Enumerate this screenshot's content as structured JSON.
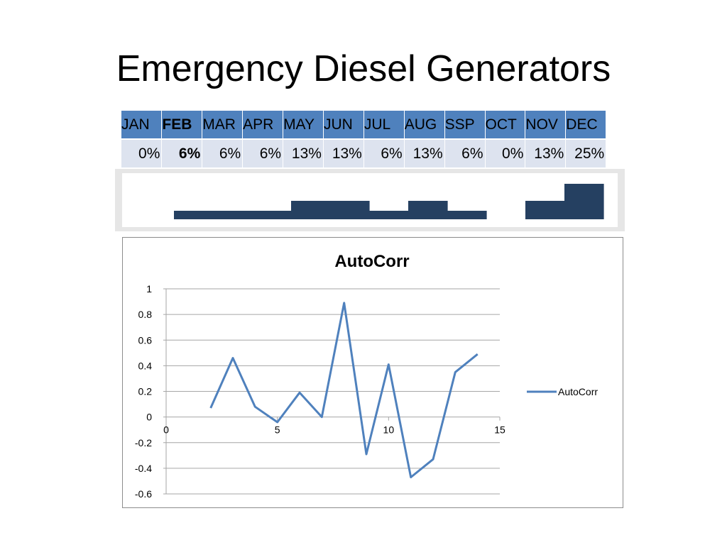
{
  "slide": {
    "title": "Emergency Diesel Generators"
  },
  "months_table": {
    "headers": [
      "JAN",
      "FEB",
      "MAR",
      "APR",
      "MAY",
      "JUN",
      "JUL",
      "AUG",
      "SSP",
      "OCT",
      "NOV",
      "DEC"
    ],
    "values": [
      "0%",
      "6%",
      "6%",
      "6%",
      "13%",
      "13%",
      "6%",
      "13%",
      "6%",
      "0%",
      "13%",
      "25%"
    ],
    "highlight_index": 1
  },
  "colors": {
    "header_fill": "#4f81bd",
    "value_fill": "#dde3ef",
    "bar_fill": "#254061",
    "line": "#4f81bd",
    "grid": "#a6a6a6"
  },
  "chart_data": [
    {
      "type": "bar",
      "categories": [
        "JAN",
        "FEB",
        "MAR",
        "APR",
        "MAY",
        "JUN",
        "JUL",
        "AUG",
        "SSP",
        "OCT",
        "NOV",
        "DEC"
      ],
      "values": [
        0,
        6,
        6,
        6,
        13,
        13,
        6,
        13,
        6,
        0,
        13,
        25
      ],
      "ylim": [
        0,
        25
      ]
    },
    {
      "type": "line",
      "title": "AutoCorr",
      "xlabel": "",
      "ylabel": "",
      "xlim": [
        0,
        15
      ],
      "ylim": [
        -0.6,
        1
      ],
      "x_ticks": [
        0,
        5,
        10,
        15
      ],
      "y_ticks": [
        1,
        0.8,
        0.6,
        0.4,
        0.2,
        0,
        -0.2,
        -0.4,
        -0.6
      ],
      "grid": true,
      "legend": "right",
      "series": [
        {
          "name": "AutoCorr",
          "x": [
            2,
            3,
            4,
            5,
            6,
            7,
            8,
            9,
            10,
            11,
            12,
            13,
            14
          ],
          "y": [
            0.07,
            0.46,
            0.08,
            -0.04,
            0.19,
            0.0,
            0.89,
            -0.29,
            0.41,
            -0.47,
            -0.33,
            0.35,
            0.49
          ]
        }
      ]
    }
  ]
}
